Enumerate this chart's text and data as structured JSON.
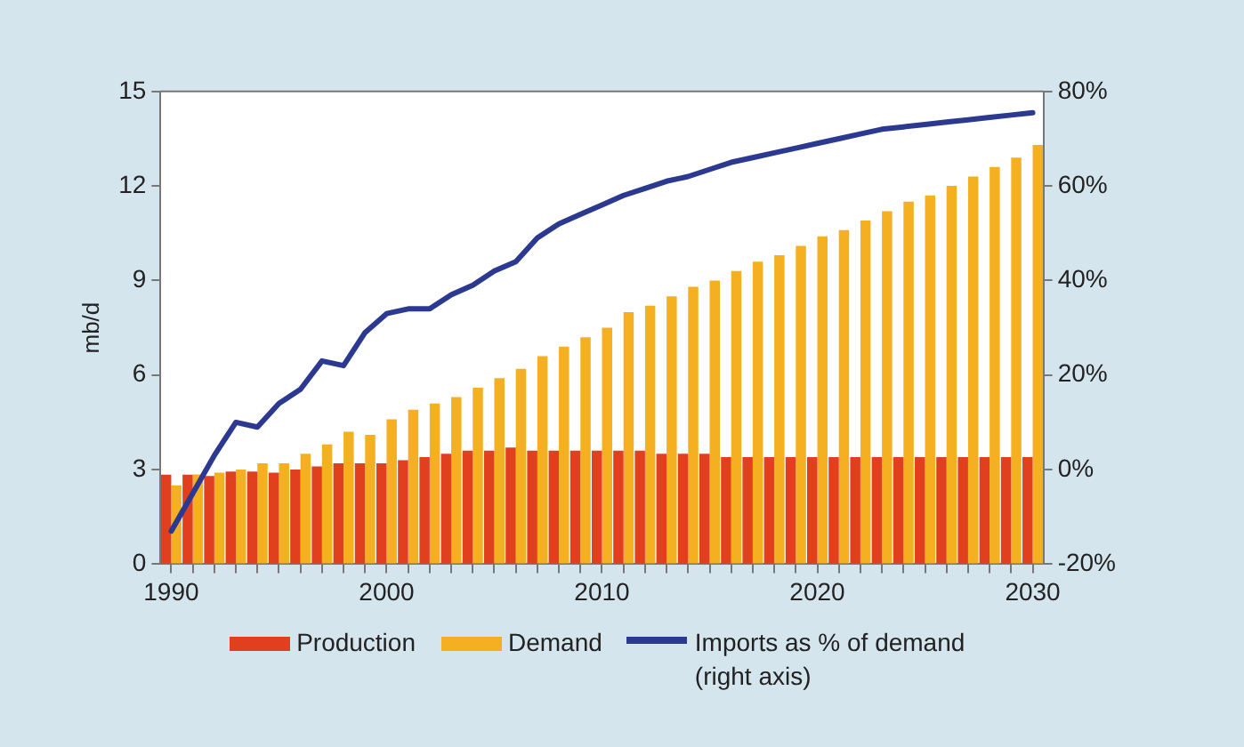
{
  "chart_data": {
    "type": "bar",
    "ylabel": "mb/d",
    "categories": [
      "1990",
      null,
      null,
      null,
      null,
      null,
      null,
      null,
      null,
      null,
      "2000",
      null,
      null,
      null,
      null,
      null,
      null,
      null,
      null,
      null,
      "2010",
      null,
      null,
      null,
      null,
      null,
      null,
      null,
      null,
      null,
      "2020",
      null,
      null,
      null,
      null,
      null,
      null,
      null,
      null,
      null,
      "2030"
    ],
    "series": [
      {
        "name": "Production",
        "color": "#e0401e",
        "values": [
          2.84,
          2.84,
          2.8,
          2.94,
          2.94,
          2.9,
          3.0,
          3.1,
          3.2,
          3.2,
          3.2,
          3.3,
          3.4,
          3.5,
          3.6,
          3.6,
          3.7,
          3.6,
          3.6,
          3.6,
          3.6,
          3.6,
          3.6,
          3.5,
          3.5,
          3.5,
          3.4,
          3.4,
          3.4,
          3.4,
          3.4,
          3.4,
          3.4,
          3.4,
          3.4,
          3.4,
          3.4,
          3.4,
          3.4,
          3.4,
          3.4
        ]
      },
      {
        "name": "Demand",
        "color": "#f5b021",
        "values": [
          2.5,
          2.85,
          2.9,
          3.0,
          3.2,
          3.2,
          3.5,
          3.8,
          4.2,
          4.1,
          4.6,
          4.9,
          5.1,
          5.3,
          5.6,
          5.9,
          6.2,
          6.6,
          6.9,
          7.2,
          7.5,
          8.0,
          8.2,
          8.5,
          8.8,
          9.0,
          9.3,
          9.6,
          9.8,
          10.1,
          10.4,
          10.6,
          10.9,
          11.2,
          11.5,
          11.7,
          12.0,
          12.3,
          12.6,
          12.9,
          13.3
        ]
      },
      {
        "name": "Imports as % of demand (right axis)",
        "type": "line",
        "axis": "y2",
        "color": "#2b3990",
        "values": [
          -13,
          -5,
          3,
          10,
          9,
          14,
          17,
          23,
          22,
          29,
          33,
          34,
          34,
          37,
          39,
          42,
          44,
          49,
          52,
          54,
          56,
          58,
          59.5,
          61,
          62,
          63.5,
          65,
          66,
          67,
          68,
          69,
          70,
          71,
          72,
          72.5,
          73,
          73.5,
          74,
          74.5,
          75,
          75.5
        ]
      }
    ],
    "ylim": [
      0,
      15
    ],
    "yticks": [
      0,
      3,
      6,
      9,
      12,
      15
    ],
    "y2lim": [
      -20,
      80
    ],
    "y2ticks": [
      {
        "value": -20,
        "label": "-20%"
      },
      {
        "value": 0,
        "label": "0%"
      },
      {
        "value": 20,
        "label": "20%"
      },
      {
        "value": 40,
        "label": "40%"
      },
      {
        "value": 60,
        "label": "60%"
      },
      {
        "value": 80,
        "label": "80%"
      }
    ],
    "grid": false,
    "legend": "bottom",
    "marker": "none",
    "line_style": "solid"
  }
}
